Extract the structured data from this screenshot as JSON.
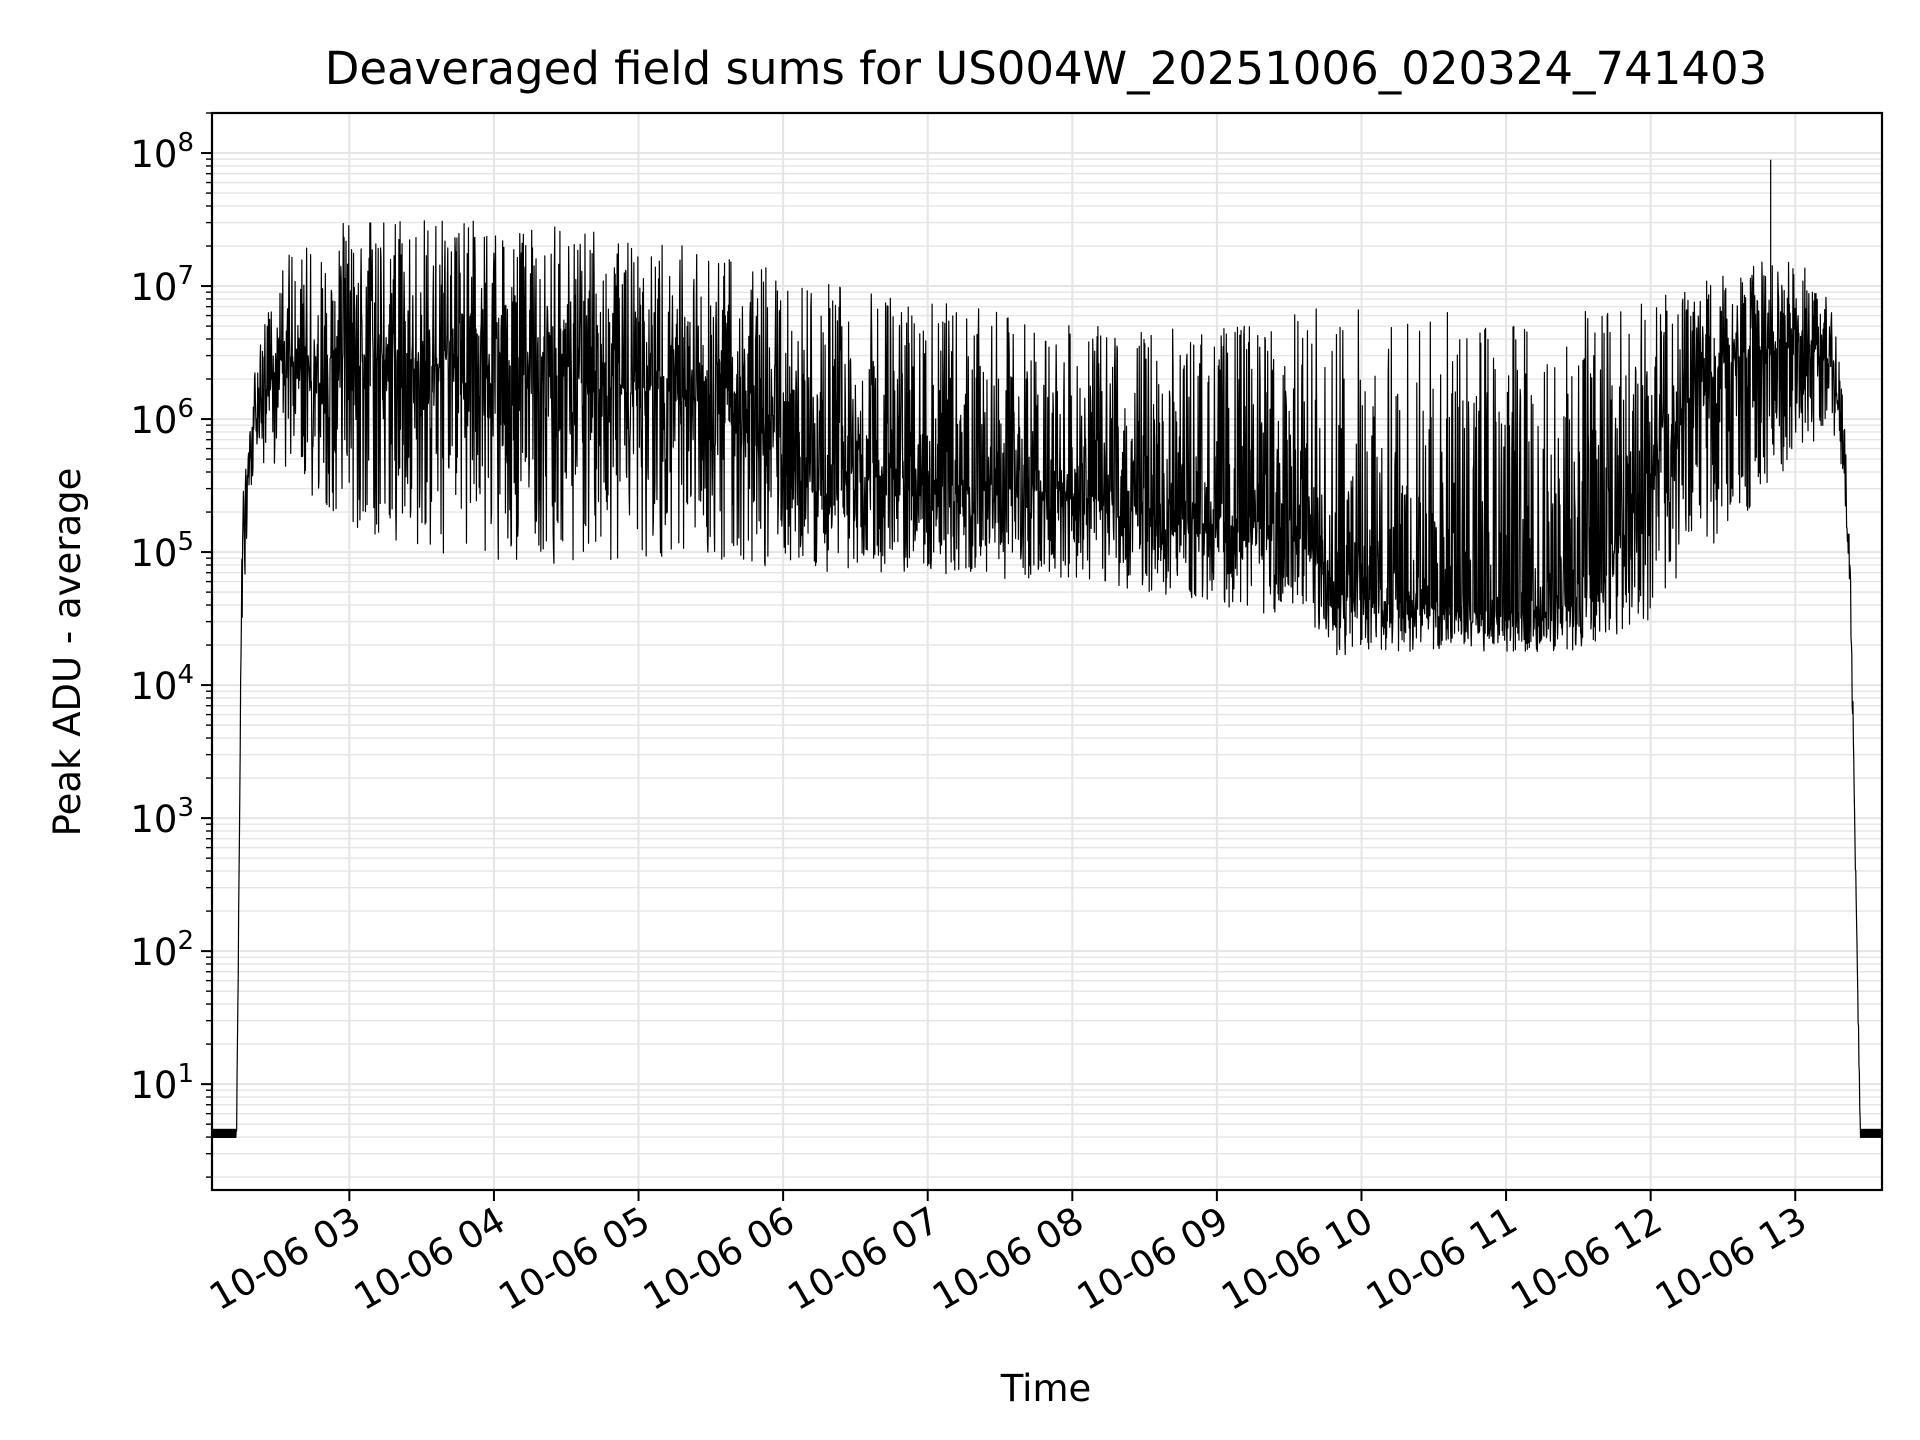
{
  "chart_data": {
    "type": "line",
    "title": "Deaveraged field sums for US004W_20251006_020324_741403",
    "xlabel": "Time",
    "ylabel": "Peak ADU - average",
    "yscale": "log",
    "ylim": [
      1.6,
      200000000
    ],
    "xlim": [
      2.05,
      13.6
    ],
    "grid": true,
    "line_color": "#000000",
    "grid_color": "#e5e5e5",
    "x_ticks": [
      {
        "value": 3,
        "label": "10-06 03"
      },
      {
        "value": 4,
        "label": "10-06 04"
      },
      {
        "value": 5,
        "label": "10-06 05"
      },
      {
        "value": 6,
        "label": "10-06 06"
      },
      {
        "value": 7,
        "label": "10-06 07"
      },
      {
        "value": 8,
        "label": "10-06 08"
      },
      {
        "value": 9,
        "label": "10-06 09"
      },
      {
        "value": 10,
        "label": "10-06 10"
      },
      {
        "value": 11,
        "label": "10-06 11"
      },
      {
        "value": 12,
        "label": "10-06 12"
      },
      {
        "value": 13,
        "label": "10-06 13"
      }
    ],
    "y_ticks": [
      {
        "exp": 1,
        "base": "10",
        "sup": "1"
      },
      {
        "exp": 2,
        "base": "10",
        "sup": "2"
      },
      {
        "exp": 3,
        "base": "10",
        "sup": "3"
      },
      {
        "exp": 4,
        "base": "10",
        "sup": "4"
      },
      {
        "exp": 5,
        "base": "10",
        "sup": "5"
      },
      {
        "exp": 6,
        "base": "10",
        "sup": "6"
      },
      {
        "exp": 7,
        "base": "10",
        "sup": "7"
      },
      {
        "exp": 8,
        "base": "10",
        "sup": "8"
      }
    ],
    "series": [
      {
        "name": "field sums",
        "envelope": [
          {
            "x": 2.05,
            "log_low": 0.6,
            "log_mid": 0.62,
            "log_high": 0.66
          },
          {
            "x": 2.22,
            "log_low": 0.6,
            "log_mid": 0.62,
            "log_high": 0.66
          },
          {
            "x": 2.26,
            "log_low": 4.6,
            "log_mid": 5.2,
            "log_high": 5.5
          },
          {
            "x": 2.35,
            "log_low": 5.7,
            "log_mid": 6.1,
            "log_high": 6.4
          },
          {
            "x": 2.5,
            "log_low": 5.6,
            "log_mid": 6.4,
            "log_high": 7.2
          },
          {
            "x": 3.0,
            "log_low": 5.2,
            "log_mid": 6.5,
            "log_high": 7.5
          },
          {
            "x": 3.5,
            "log_low": 5.0,
            "log_mid": 6.4,
            "log_high": 7.5
          },
          {
            "x": 4.0,
            "log_low": 4.9,
            "log_mid": 6.35,
            "log_high": 7.5
          },
          {
            "x": 4.5,
            "log_low": 4.9,
            "log_mid": 6.3,
            "log_high": 7.45
          },
          {
            "x": 5.0,
            "log_low": 4.9,
            "log_mid": 6.2,
            "log_high": 7.35
          },
          {
            "x": 5.5,
            "log_low": 4.9,
            "log_mid": 6.2,
            "log_high": 7.3
          },
          {
            "x": 6.0,
            "log_low": 4.85,
            "log_mid": 5.8,
            "log_high": 7.1
          },
          {
            "x": 6.5,
            "log_low": 4.85,
            "log_mid": 5.6,
            "log_high": 7.0
          },
          {
            "x": 7.0,
            "log_low": 4.85,
            "log_mid": 5.5,
            "log_high": 6.9
          },
          {
            "x": 7.5,
            "log_low": 4.8,
            "log_mid": 5.5,
            "log_high": 6.8
          },
          {
            "x": 8.0,
            "log_low": 4.8,
            "log_mid": 5.45,
            "log_high": 6.7
          },
          {
            "x": 8.5,
            "log_low": 4.7,
            "log_mid": 5.3,
            "log_high": 6.7
          },
          {
            "x": 9.0,
            "log_low": 4.6,
            "log_mid": 5.2,
            "log_high": 6.7
          },
          {
            "x": 9.5,
            "log_low": 4.5,
            "log_mid": 5.2,
            "log_high": 6.8
          },
          {
            "x": 9.8,
            "log_low": 4.2,
            "log_mid": 4.7,
            "log_high": 6.9
          },
          {
            "x": 10.0,
            "log_low": 4.25,
            "log_mid": 4.65,
            "log_high": 6.9
          },
          {
            "x": 10.5,
            "log_low": 4.25,
            "log_mid": 4.6,
            "log_high": 6.8
          },
          {
            "x": 11.0,
            "log_low": 4.25,
            "log_mid": 4.55,
            "log_high": 6.8
          },
          {
            "x": 11.5,
            "log_low": 4.25,
            "log_mid": 4.6,
            "log_high": 6.8
          },
          {
            "x": 12.0,
            "log_low": 4.5,
            "log_mid": 5.6,
            "log_high": 6.9
          },
          {
            "x": 12.5,
            "log_low": 5.1,
            "log_mid": 6.4,
            "log_high": 7.1
          },
          {
            "x": 13.0,
            "log_low": 5.7,
            "log_mid": 6.6,
            "log_high": 7.25
          },
          {
            "x": 13.25,
            "log_low": 5.9,
            "log_mid": 6.4,
            "log_high": 6.9
          },
          {
            "x": 13.33,
            "log_low": 5.6,
            "log_mid": 5.9,
            "log_high": 6.2
          },
          {
            "x": 13.38,
            "log_low": 4.6,
            "log_mid": 4.9,
            "log_high": 5.1
          },
          {
            "x": 13.45,
            "log_low": 0.6,
            "log_mid": 0.62,
            "log_high": 0.66
          },
          {
            "x": 13.6,
            "log_low": 0.6,
            "log_mid": 0.62,
            "log_high": 0.66
          }
        ],
        "spikes": [
          {
            "x": 12.83,
            "log_value": 7.95
          }
        ]
      }
    ]
  }
}
